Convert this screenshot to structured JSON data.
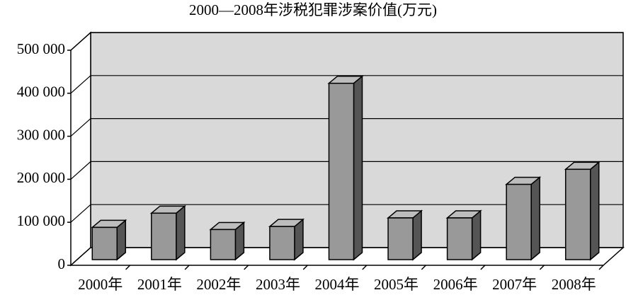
{
  "chart_data": {
    "type": "bar3d",
    "title": "2000—2008年涉税犯罪涉案价值(万元)",
    "categories": [
      "2000年",
      "2001年",
      "2002年",
      "2003年",
      "2004年",
      "2005年",
      "2006年",
      "2007年",
      "2008年"
    ],
    "values": [
      75000,
      108000,
      70000,
      77000,
      410000,
      97000,
      97000,
      175000,
      210000
    ],
    "color": "#999999",
    "ylim": [
      0,
      500000
    ],
    "yticks": [
      0,
      {
        "value": 100000,
        "label": "100 000"
      },
      {
        "value": 200000,
        "label": "200 000"
      },
      {
        "value": 300000,
        "label": "300 000"
      },
      {
        "value": 400000,
        "label": "400 000"
      },
      {
        "value": 500000,
        "label": "500 000"
      }
    ],
    "grid": true
  }
}
